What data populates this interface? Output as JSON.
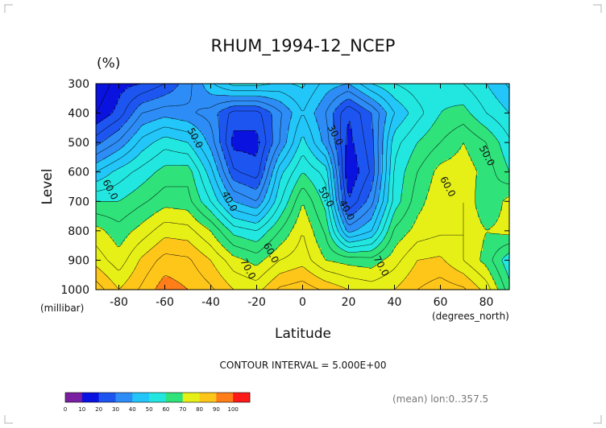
{
  "title": "RHUM_1994-12_NCEP",
  "units_label": "(%)",
  "footer_text": "CONTOUR INTERVAL = 5.000E+00",
  "mean_note": "(mean) lon:0..357.5",
  "colorbar": {
    "ticks": [
      "0",
      "10",
      "20",
      "30",
      "40",
      "50",
      "60",
      "70",
      "80",
      "90",
      "100"
    ],
    "colors": [
      "#7a1fa2",
      "#0a12e0",
      "#1d55f0",
      "#2d8cf5",
      "#22c6f8",
      "#22e7e0",
      "#2fe27a",
      "#e6f016",
      "#ffc61a",
      "#ff7e1a",
      "#ff1a1a"
    ]
  },
  "chart_data": {
    "type": "contour",
    "title": "RHUM_1994-12_NCEP",
    "xlabel": "Latitude",
    "ylabel": "Level",
    "x_unit": "(degrees_north)",
    "y_unit": "(millibar)",
    "xlim": [
      -90,
      90
    ],
    "ylim": [
      1000,
      300
    ],
    "y_reversed": true,
    "x_ticks": [
      "-80",
      "-60",
      "-40",
      "-20",
      "0",
      "20",
      "40",
      "60",
      "80"
    ],
    "x_tick_values": [
      -80,
      -60,
      -40,
      -20,
      0,
      20,
      40,
      60,
      80
    ],
    "y_ticks": [
      "300",
      "400",
      "500",
      "600",
      "700",
      "800",
      "900",
      "1000"
    ],
    "y_tick_values": [
      300,
      400,
      500,
      600,
      700,
      800,
      900,
      1000
    ],
    "contour_interval": 5,
    "contour_labels": [
      {
        "text": "30.0",
        "lat": 13,
        "lev": 480
      },
      {
        "text": "40.0",
        "lat": -33,
        "lev": 705
      },
      {
        "text": "40.0",
        "lat": 18,
        "lev": 735
      },
      {
        "text": "50.0",
        "lat": -48,
        "lev": 490
      },
      {
        "text": "50.0",
        "lat": 9,
        "lev": 690
      },
      {
        "text": "50.0",
        "lat": 79,
        "lev": 550
      },
      {
        "text": "60.0",
        "lat": -85,
        "lev": 665
      },
      {
        "text": "60.0",
        "lat": -15,
        "lev": 880
      },
      {
        "text": "60.0",
        "lat": 62,
        "lev": 655
      },
      {
        "text": "70.0",
        "lat": -25,
        "lev": 935
      },
      {
        "text": "70.0",
        "lat": 33,
        "lev": 925
      }
    ],
    "grid_lat": [
      -90,
      -80,
      -70,
      -60,
      -50,
      -40,
      -30,
      -20,
      -10,
      0,
      10,
      20,
      30,
      40,
      50,
      60,
      70,
      80,
      90
    ],
    "grid_lev": [
      300,
      400,
      500,
      600,
      700,
      800,
      900,
      1000
    ],
    "grid_values": [
      [
        10,
        18,
        20,
        25,
        33,
        44,
        52,
        52,
        49,
        51,
        43,
        40,
        50,
        55,
        58,
        58,
        55,
        50,
        44
      ],
      [
        15,
        22,
        35,
        38,
        36,
        33,
        23,
        23,
        34,
        45,
        35,
        20,
        30,
        45,
        53,
        60,
        62,
        55,
        50
      ],
      [
        28,
        36,
        47,
        53,
        50,
        38,
        18,
        18,
        35,
        52,
        38,
        18,
        28,
        53,
        60,
        65,
        70,
        65,
        56
      ],
      [
        45,
        52,
        57,
        62,
        63,
        47,
        26,
        22,
        48,
        60,
        53,
        15,
        26,
        56,
        65,
        72,
        73,
        68,
        60
      ],
      [
        60,
        60,
        64,
        68,
        67,
        55,
        40,
        35,
        54,
        70,
        58,
        20,
        33,
        57,
        68,
        74,
        75,
        65,
        72
      ],
      [
        72,
        67,
        72,
        78,
        77,
        70,
        58,
        55,
        65,
        75,
        64,
        38,
        45,
        66,
        72,
        74,
        75,
        70,
        72
      ],
      [
        78,
        72,
        81,
        87,
        86,
        80,
        72,
        68,
        75,
        78,
        70,
        68,
        67,
        73,
        80,
        81,
        75,
        68,
        56
      ],
      [
        88,
        80,
        86,
        93,
        90,
        86,
        80,
        78,
        86,
        88,
        84,
        80,
        78,
        80,
        85,
        88,
        86,
        78,
        62
      ]
    ]
  }
}
